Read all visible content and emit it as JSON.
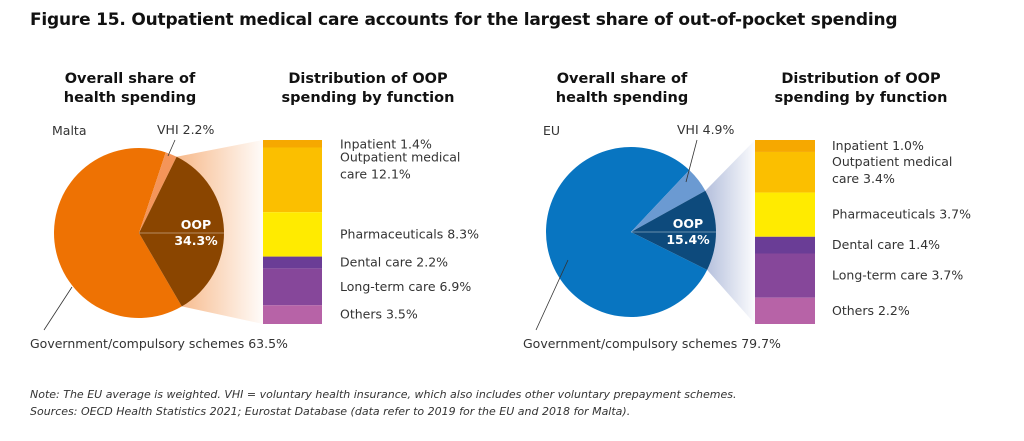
{
  "title": "Figure 15. Outpatient medical care accounts for the largest share of out-of-pocket spending",
  "notes": [
    "Note: The EU average is weighted. VHI = voluntary health insurance, which also includes other voluntary prepayment schemes.",
    "Sources: OECD Health Statistics 2021; Eurostat Database (data refer to 2019 for the EU and 2018 for Malta)."
  ],
  "chart_data": [
    {
      "type": "pie",
      "region": "Malta",
      "pie_title": [
        "Overall share of",
        "health spending"
      ],
      "bar_title": [
        "Distribution of OOP",
        "spending by function"
      ],
      "slices": [
        {
          "name": "OOP",
          "value": 34.3,
          "label": [
            "OOP",
            "34.3%"
          ],
          "color": "#8a4500"
        },
        {
          "name": "VHI",
          "value": 2.2,
          "label": "VHI 2.2%",
          "color": "#f4955a"
        },
        {
          "name": "Government/compulsory schemes",
          "value": 63.5,
          "label": "Government/compulsory schemes 63.5%",
          "color": "#ee7203"
        }
      ],
      "breakdown": [
        {
          "name": "Inpatient",
          "value": 1.4,
          "label": [
            "Inpatient 1.4%"
          ],
          "color": "#f6a800"
        },
        {
          "name": "Outpatient medical care",
          "value": 12.1,
          "label": [
            "Outpatient medical",
            "care 12.1%"
          ],
          "color": "#fbbf00"
        },
        {
          "name": "Pharmaceuticals",
          "value": 8.3,
          "label": [
            "Pharmaceuticals 8.3%"
          ],
          "color": "#ffeb00"
        },
        {
          "name": "Dental care",
          "value": 2.2,
          "label": [
            "Dental care 2.2%"
          ],
          "color": "#6a3d96"
        },
        {
          "name": "Long-term care",
          "value": 6.9,
          "label": [
            "Long-term care 6.9%"
          ],
          "color": "#86479a"
        },
        {
          "name": "Others",
          "value": 3.5,
          "label": [
            "Others 3.5%"
          ],
          "color": "#b763a7"
        }
      ],
      "fan_color": "#f7b98a"
    },
    {
      "type": "pie",
      "region": "EU",
      "pie_title": [
        "Overall share of",
        "health spending"
      ],
      "bar_title": [
        "Distribution of OOP",
        "spending by function"
      ],
      "slices": [
        {
          "name": "OOP",
          "value": 15.4,
          "label": [
            "OOP",
            "15.4%"
          ],
          "color": "#0d4a7c"
        },
        {
          "name": "VHI",
          "value": 4.9,
          "label": "VHI 4.9%",
          "color": "#6b9ad2"
        },
        {
          "name": "Government/compulsory schemes",
          "value": 79.7,
          "label": "Government/compulsory schemes 79.7%",
          "color": "#0875c1"
        }
      ],
      "breakdown": [
        {
          "name": "Inpatient",
          "value": 1.0,
          "label": [
            "Inpatient 1.0%"
          ],
          "color": "#f6a800"
        },
        {
          "name": "Outpatient medical care",
          "value": 3.4,
          "label": [
            "Outpatient medical",
            "care 3.4%"
          ],
          "color": "#fbbf00"
        },
        {
          "name": "Pharmaceuticals",
          "value": 3.7,
          "label": [
            "Pharmaceuticals 3.7%"
          ],
          "color": "#ffeb00"
        },
        {
          "name": "Dental care",
          "value": 1.4,
          "label": [
            "Dental care 1.4%"
          ],
          "color": "#6a3d96"
        },
        {
          "name": "Long-term care",
          "value": 3.7,
          "label": [
            "Long-term care 3.7%"
          ],
          "color": "#86479a"
        },
        {
          "name": "Others",
          "value": 2.2,
          "label": [
            "Others 2.2%"
          ],
          "color": "#b763a7"
        }
      ],
      "fan_color": "#b4bfdc"
    }
  ]
}
